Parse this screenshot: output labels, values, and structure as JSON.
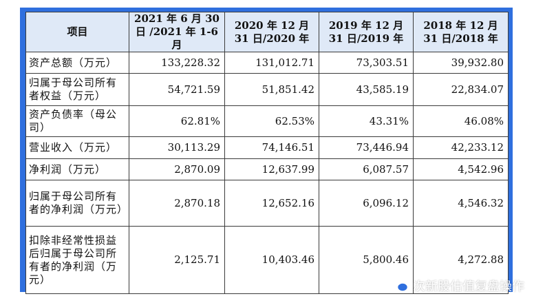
{
  "table": {
    "headers": [
      "项目",
      "2021 年 6 月 30 日 /2021 年 1-6 月",
      "2020 年 12 月 31 日/2020 年",
      "2019 年 12 月 31 日/2019 年",
      "2018 年 12 月 31 日/2018 年"
    ],
    "rows": [
      {
        "label": "资产总额（万元）",
        "values": [
          "133,228.32",
          "131,012.71",
          "73,303.51",
          "39,932.80"
        ]
      },
      {
        "label": "归属于母公司所有者权益（万元）",
        "values": [
          "54,721.59",
          "51,851.42",
          "43,585.19",
          "22,834.07"
        ]
      },
      {
        "label": "资产负债率（母公司）",
        "values": [
          "62.81%",
          "62.53%",
          "43.31%",
          "46.08%"
        ]
      },
      {
        "label": "营业收入（万元）",
        "values": [
          "30,113.29",
          "74,146.51",
          "73,446.94",
          "42,233.12"
        ]
      },
      {
        "label": "净利润（万元）",
        "values": [
          "2,870.09",
          "12,637.99",
          "6,087.57",
          "4,542.96"
        ]
      },
      {
        "label": "归属于母公司所有者的净利润（万元）",
        "values": [
          "2,870.18",
          "12,652.16",
          "6,096.12",
          "4,546.32"
        ]
      },
      {
        "label": "扣除非经常性损益后归属于母公司所有者的净利润（万元）",
        "values": [
          "2,125.71",
          "10,403.46",
          "5,800.46",
          "4,272.88"
        ]
      }
    ]
  },
  "watermark": {
    "text": "次新股估值复盘操作",
    "icon": "wechat-icon"
  },
  "colors": {
    "frame": "#2f6fde",
    "header_bg": "#dfe9f7",
    "border": "#3a3a3a"
  }
}
